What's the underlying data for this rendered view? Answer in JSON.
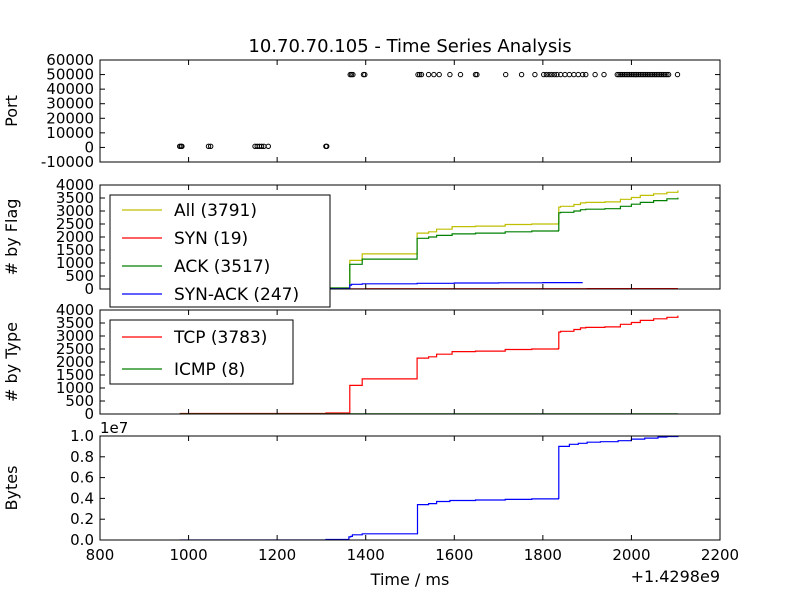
{
  "figure": {
    "title": "10.70.70.105 - Time Series Analysis",
    "xlabel": "Time / ms",
    "x_offset_label": "+1.4298e9",
    "xlim": [
      800,
      2200
    ],
    "xticks": [
      800,
      1000,
      1200,
      1400,
      1600,
      1800,
      2000,
      2200
    ]
  },
  "chart_data": [
    {
      "type": "scatter",
      "ylabel": "Port",
      "ylim": [
        -10000,
        60000
      ],
      "yticks": [
        -10000,
        0,
        10000,
        20000,
        30000,
        40000,
        50000,
        60000
      ],
      "series": [
        {
          "color": "#000000",
          "x": [
            980,
            983,
            985,
            1045,
            1050,
            1150,
            1155,
            1160,
            1165,
            1170,
            1180,
            1310,
            1312,
            1365,
            1368,
            1371,
            1395,
            1398,
            1518,
            1522,
            1526,
            1542,
            1554,
            1566,
            1590,
            1614,
            1648,
            1651,
            1716,
            1752,
            1782,
            1802,
            1808,
            1814,
            1820,
            1826,
            1832,
            1840,
            1850,
            1860,
            1870,
            1880,
            1890,
            1897,
            1918,
            1938,
            1968,
            1972,
            1976,
            1980,
            1984,
            1988,
            1992,
            1996,
            2000,
            2004,
            2008,
            2012,
            2016,
            2020,
            2024,
            2028,
            2032,
            2036,
            2040,
            2044,
            2048,
            2052,
            2056,
            2060,
            2064,
            2068,
            2072,
            2076,
            2080,
            2084,
            2104
          ],
          "y": [
            800,
            800,
            800,
            800,
            800,
            800,
            800,
            800,
            800,
            800,
            800,
            800,
            800,
            50000,
            50000,
            50000,
            50000,
            50000,
            50000,
            50000,
            50000,
            50000,
            50000,
            50000,
            50000,
            50000,
            50000,
            50000,
            50000,
            50000,
            50000,
            50000,
            50000,
            50000,
            50000,
            50000,
            50000,
            50000,
            50000,
            50000,
            50000,
            50000,
            50000,
            50000,
            50000,
            50000,
            50000,
            50000,
            50000,
            50000,
            50000,
            50000,
            50000,
            50000,
            50000,
            50000,
            50000,
            50000,
            50000,
            50000,
            50000,
            50000,
            50000,
            50000,
            50000,
            50000,
            50000,
            50000,
            50000,
            50000,
            50000,
            50000,
            50000,
            50000,
            50000,
            50000,
            50000
          ]
        }
      ]
    },
    {
      "type": "line",
      "ylabel": "# by Flag",
      "ylim": [
        0,
        4000
      ],
      "yticks": [
        0,
        500,
        1000,
        1500,
        2000,
        2500,
        3000,
        3500,
        4000
      ],
      "legend": "upper-left",
      "series": [
        {
          "name": "All (3791)",
          "color": "#bfbf00",
          "step": true,
          "x": [
            980,
            1310,
            1364,
            1368,
            1392,
            1393,
            1516,
            1517,
            1542,
            1560,
            1585,
            1595,
            1648,
            1715,
            1775,
            1835,
            1836,
            1840,
            1870,
            1885,
            1897,
            1940,
            1975,
            2000,
            2020,
            2050,
            2080,
            2105
          ],
          "y": [
            20,
            40,
            1100,
            1100,
            1350,
            1350,
            2150,
            2150,
            2200,
            2300,
            2300,
            2400,
            2420,
            2480,
            2500,
            2520,
            3150,
            3180,
            3250,
            3310,
            3330,
            3350,
            3450,
            3520,
            3600,
            3660,
            3720,
            3791
          ]
        },
        {
          "name": "SYN (19)",
          "color": "#ff0000",
          "step": true,
          "x": [
            980,
            1400,
            1900,
            2105
          ],
          "y": [
            5,
            10,
            15,
            19
          ]
        },
        {
          "name": "ACK (3517)",
          "color": "#008000",
          "step": true,
          "x": [
            980,
            1310,
            1364,
            1368,
            1392,
            1393,
            1516,
            1517,
            1542,
            1560,
            1585,
            1595,
            1648,
            1715,
            1775,
            1835,
            1836,
            1840,
            1870,
            1885,
            1897,
            1940,
            1975,
            2000,
            2020,
            2050,
            2080,
            2105
          ],
          "y": [
            20,
            40,
            950,
            950,
            1150,
            1150,
            1950,
            1950,
            2000,
            2060,
            2060,
            2120,
            2150,
            2200,
            2230,
            2250,
            2930,
            2950,
            3000,
            3050,
            3070,
            3090,
            3180,
            3260,
            3330,
            3400,
            3470,
            3517
          ]
        },
        {
          "name": "SYN-ACK (247)",
          "color": "#0000ff",
          "step": true,
          "x": [
            980,
            1310,
            1364,
            1368,
            1392,
            1516,
            1600,
            1700,
            1800,
            1850,
            1890
          ],
          "y": [
            5,
            10,
            150,
            180,
            200,
            220,
            230,
            240,
            245,
            247,
            247
          ]
        }
      ]
    },
    {
      "type": "line",
      "ylabel": "# by Type",
      "ylim": [
        0,
        4000
      ],
      "yticks": [
        0,
        500,
        1000,
        1500,
        2000,
        2500,
        3000,
        3500,
        4000
      ],
      "legend": "upper-left",
      "series": [
        {
          "name": "TCP (3783)",
          "color": "#ff0000",
          "step": true,
          "x": [
            980,
            1310,
            1364,
            1368,
            1392,
            1393,
            1516,
            1517,
            1542,
            1560,
            1585,
            1595,
            1648,
            1715,
            1775,
            1835,
            1836,
            1840,
            1870,
            1885,
            1897,
            1940,
            1975,
            2000,
            2020,
            2050,
            2080,
            2105
          ],
          "y": [
            20,
            40,
            1100,
            1100,
            1350,
            1350,
            2150,
            2150,
            2200,
            2300,
            2300,
            2400,
            2420,
            2480,
            2500,
            2520,
            3150,
            3180,
            3250,
            3310,
            3330,
            3350,
            3450,
            3520,
            3600,
            3660,
            3720,
            3783
          ]
        },
        {
          "name": "ICMP (8)",
          "color": "#008000",
          "step": true,
          "x": [
            980,
            2105
          ],
          "y": [
            8,
            8
          ]
        }
      ]
    },
    {
      "type": "line",
      "ylabel": "Bytes",
      "y_scale_label": "1e7",
      "ylim": [
        0,
        1.0
      ],
      "yticks": [
        0.0,
        0.2,
        0.4,
        0.6,
        0.8,
        1.0
      ],
      "series": [
        {
          "color": "#0000ff",
          "step": true,
          "x": [
            980,
            1310,
            1362,
            1366,
            1370,
            1392,
            1393,
            1516,
            1517,
            1542,
            1560,
            1590,
            1648,
            1715,
            1775,
            1835,
            1836,
            1860,
            1880,
            1900,
            1930,
            1970,
            2000,
            2030,
            2060,
            2080,
            2105
          ],
          "y": [
            0.0,
            0.005,
            0.03,
            0.035,
            0.05,
            0.06,
            0.06,
            0.06,
            0.34,
            0.35,
            0.37,
            0.38,
            0.385,
            0.39,
            0.395,
            0.4,
            0.9,
            0.92,
            0.93,
            0.94,
            0.945,
            0.955,
            0.97,
            0.98,
            0.99,
            0.995,
            0.998
          ]
        }
      ]
    }
  ]
}
